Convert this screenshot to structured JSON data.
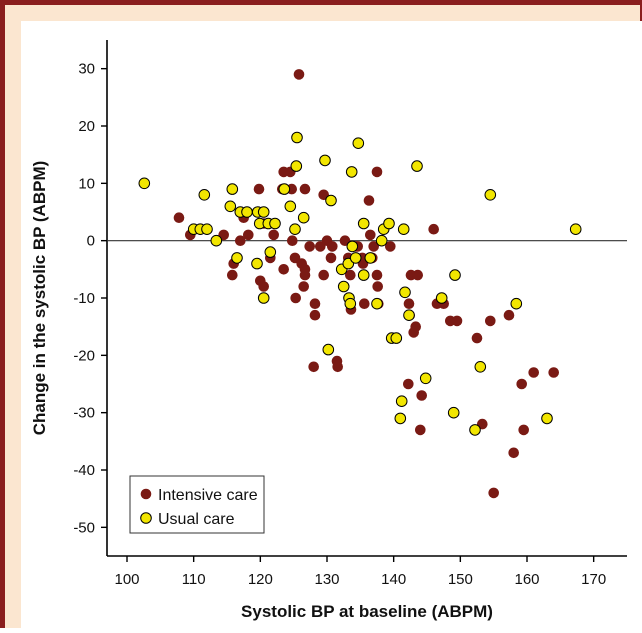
{
  "chart_data": {
    "type": "scatter",
    "xlabel": "Systolic BP at baseline (ABPM)",
    "ylabel": "Change in the systolic BP (ABPM)",
    "xlim": [
      97,
      175
    ],
    "ylim": [
      -55,
      35
    ],
    "xticks": [
      100,
      110,
      120,
      130,
      140,
      150,
      160,
      170
    ],
    "yticks": [
      30,
      20,
      10,
      0,
      -10,
      -20,
      -30,
      -40,
      -50
    ],
    "reference_line_y": 0,
    "grid": false,
    "legend_position": "bottom-left",
    "series": [
      {
        "name": "Intensive care",
        "color": "#7a1a14",
        "points": [
          [
            107.8,
            4
          ],
          [
            109.5,
            1
          ],
          [
            114.5,
            1
          ],
          [
            116,
            -4
          ],
          [
            115.8,
            -6
          ],
          [
            117,
            0
          ],
          [
            117.5,
            4
          ],
          [
            118.2,
            1
          ],
          [
            119.8,
            9
          ],
          [
            120,
            -7
          ],
          [
            120.5,
            3
          ],
          [
            120.5,
            -8
          ],
          [
            121.5,
            -3
          ],
          [
            122,
            1
          ],
          [
            123.3,
            9
          ],
          [
            123.5,
            12
          ],
          [
            123.5,
            -5
          ],
          [
            124.5,
            12
          ],
          [
            124.8,
            0
          ],
          [
            124.7,
            9
          ],
          [
            125.2,
            -3
          ],
          [
            125.3,
            -10
          ],
          [
            125.8,
            29
          ],
          [
            126.2,
            -4
          ],
          [
            126.5,
            -8
          ],
          [
            126.7,
            -5
          ],
          [
            126.7,
            -6
          ],
          [
            126.7,
            9
          ],
          [
            127.4,
            -1
          ],
          [
            128,
            -22
          ],
          [
            128.2,
            -11
          ],
          [
            128.2,
            -13
          ],
          [
            129,
            -1
          ],
          [
            129.5,
            8
          ],
          [
            129.5,
            -6
          ],
          [
            130,
            0
          ],
          [
            130.6,
            -3
          ],
          [
            130.8,
            -1
          ],
          [
            131.5,
            -21
          ],
          [
            131.6,
            -22
          ],
          [
            132.7,
            0
          ],
          [
            133.2,
            -3
          ],
          [
            133.5,
            -6
          ],
          [
            133.6,
            -12
          ],
          [
            134.3,
            -1
          ],
          [
            134.6,
            -1
          ],
          [
            135.3,
            -3
          ],
          [
            135.4,
            -4
          ],
          [
            135.6,
            -11
          ],
          [
            136.3,
            7
          ],
          [
            136.5,
            1
          ],
          [
            136.8,
            -3
          ],
          [
            137,
            -1
          ],
          [
            137.5,
            12
          ],
          [
            137.5,
            -6
          ],
          [
            137.6,
            -8
          ],
          [
            137.7,
            -11
          ],
          [
            138.5,
            2
          ],
          [
            139.5,
            -1
          ],
          [
            142.2,
            -25
          ],
          [
            142.3,
            -11
          ],
          [
            142.4,
            -13
          ],
          [
            142.6,
            -6
          ],
          [
            143,
            -16
          ],
          [
            143.3,
            -15
          ],
          [
            143.6,
            -6
          ],
          [
            144,
            -33
          ],
          [
            144.2,
            -27
          ],
          [
            146,
            2
          ],
          [
            146.5,
            -11
          ],
          [
            147.5,
            -11
          ],
          [
            148.5,
            -14
          ],
          [
            149.5,
            -14
          ],
          [
            152.5,
            -17
          ],
          [
            153.3,
            -32
          ],
          [
            154.5,
            -14
          ],
          [
            155,
            -44
          ],
          [
            157.3,
            -13
          ],
          [
            158,
            -37
          ],
          [
            159.2,
            -25
          ],
          [
            159.5,
            -33
          ],
          [
            161,
            -23
          ],
          [
            164,
            -23
          ]
        ]
      },
      {
        "name": "Usual care",
        "color": "#f2e600",
        "points": [
          [
            102.6,
            10
          ],
          [
            110,
            2
          ],
          [
            111,
            2
          ],
          [
            112,
            2
          ],
          [
            111.6,
            8
          ],
          [
            113.4,
            0
          ],
          [
            115.5,
            6
          ],
          [
            115.8,
            9
          ],
          [
            116.5,
            -3
          ],
          [
            117,
            5
          ],
          [
            118,
            5
          ],
          [
            119.5,
            -4
          ],
          [
            119.6,
            5
          ],
          [
            119.9,
            3
          ],
          [
            120.5,
            5
          ],
          [
            120.5,
            -10
          ],
          [
            121.2,
            3
          ],
          [
            121.5,
            -2
          ],
          [
            122.2,
            3
          ],
          [
            123.6,
            9
          ],
          [
            124.5,
            6
          ],
          [
            125.2,
            2
          ],
          [
            125.4,
            13
          ],
          [
            125.5,
            18
          ],
          [
            126.5,
            4
          ],
          [
            129.7,
            14
          ],
          [
            130.2,
            -19
          ],
          [
            130.6,
            7
          ],
          [
            132.2,
            -5
          ],
          [
            132.5,
            -8
          ],
          [
            133.2,
            -4
          ],
          [
            133.3,
            -10
          ],
          [
            133.5,
            -11
          ],
          [
            133.7,
            12
          ],
          [
            133.8,
            -1
          ],
          [
            134.3,
            -3
          ],
          [
            134.7,
            17
          ],
          [
            135.5,
            3
          ],
          [
            135.5,
            -6
          ],
          [
            136.5,
            -3
          ],
          [
            137.5,
            -11
          ],
          [
            138.2,
            0
          ],
          [
            138.5,
            2
          ],
          [
            139.3,
            3
          ],
          [
            139.7,
            -17
          ],
          [
            140.4,
            -17
          ],
          [
            141,
            -31
          ],
          [
            141.2,
            -28
          ],
          [
            141.5,
            2
          ],
          [
            141.7,
            -9
          ],
          [
            142.3,
            -13
          ],
          [
            143.5,
            13
          ],
          [
            144.8,
            -24
          ],
          [
            147.2,
            -10
          ],
          [
            149,
            -30
          ],
          [
            149.2,
            -6
          ],
          [
            152.2,
            -33
          ],
          [
            153,
            -22
          ],
          [
            154.5,
            8
          ],
          [
            158.4,
            -11
          ],
          [
            163,
            -31
          ],
          [
            167.3,
            2
          ]
        ]
      }
    ]
  }
}
